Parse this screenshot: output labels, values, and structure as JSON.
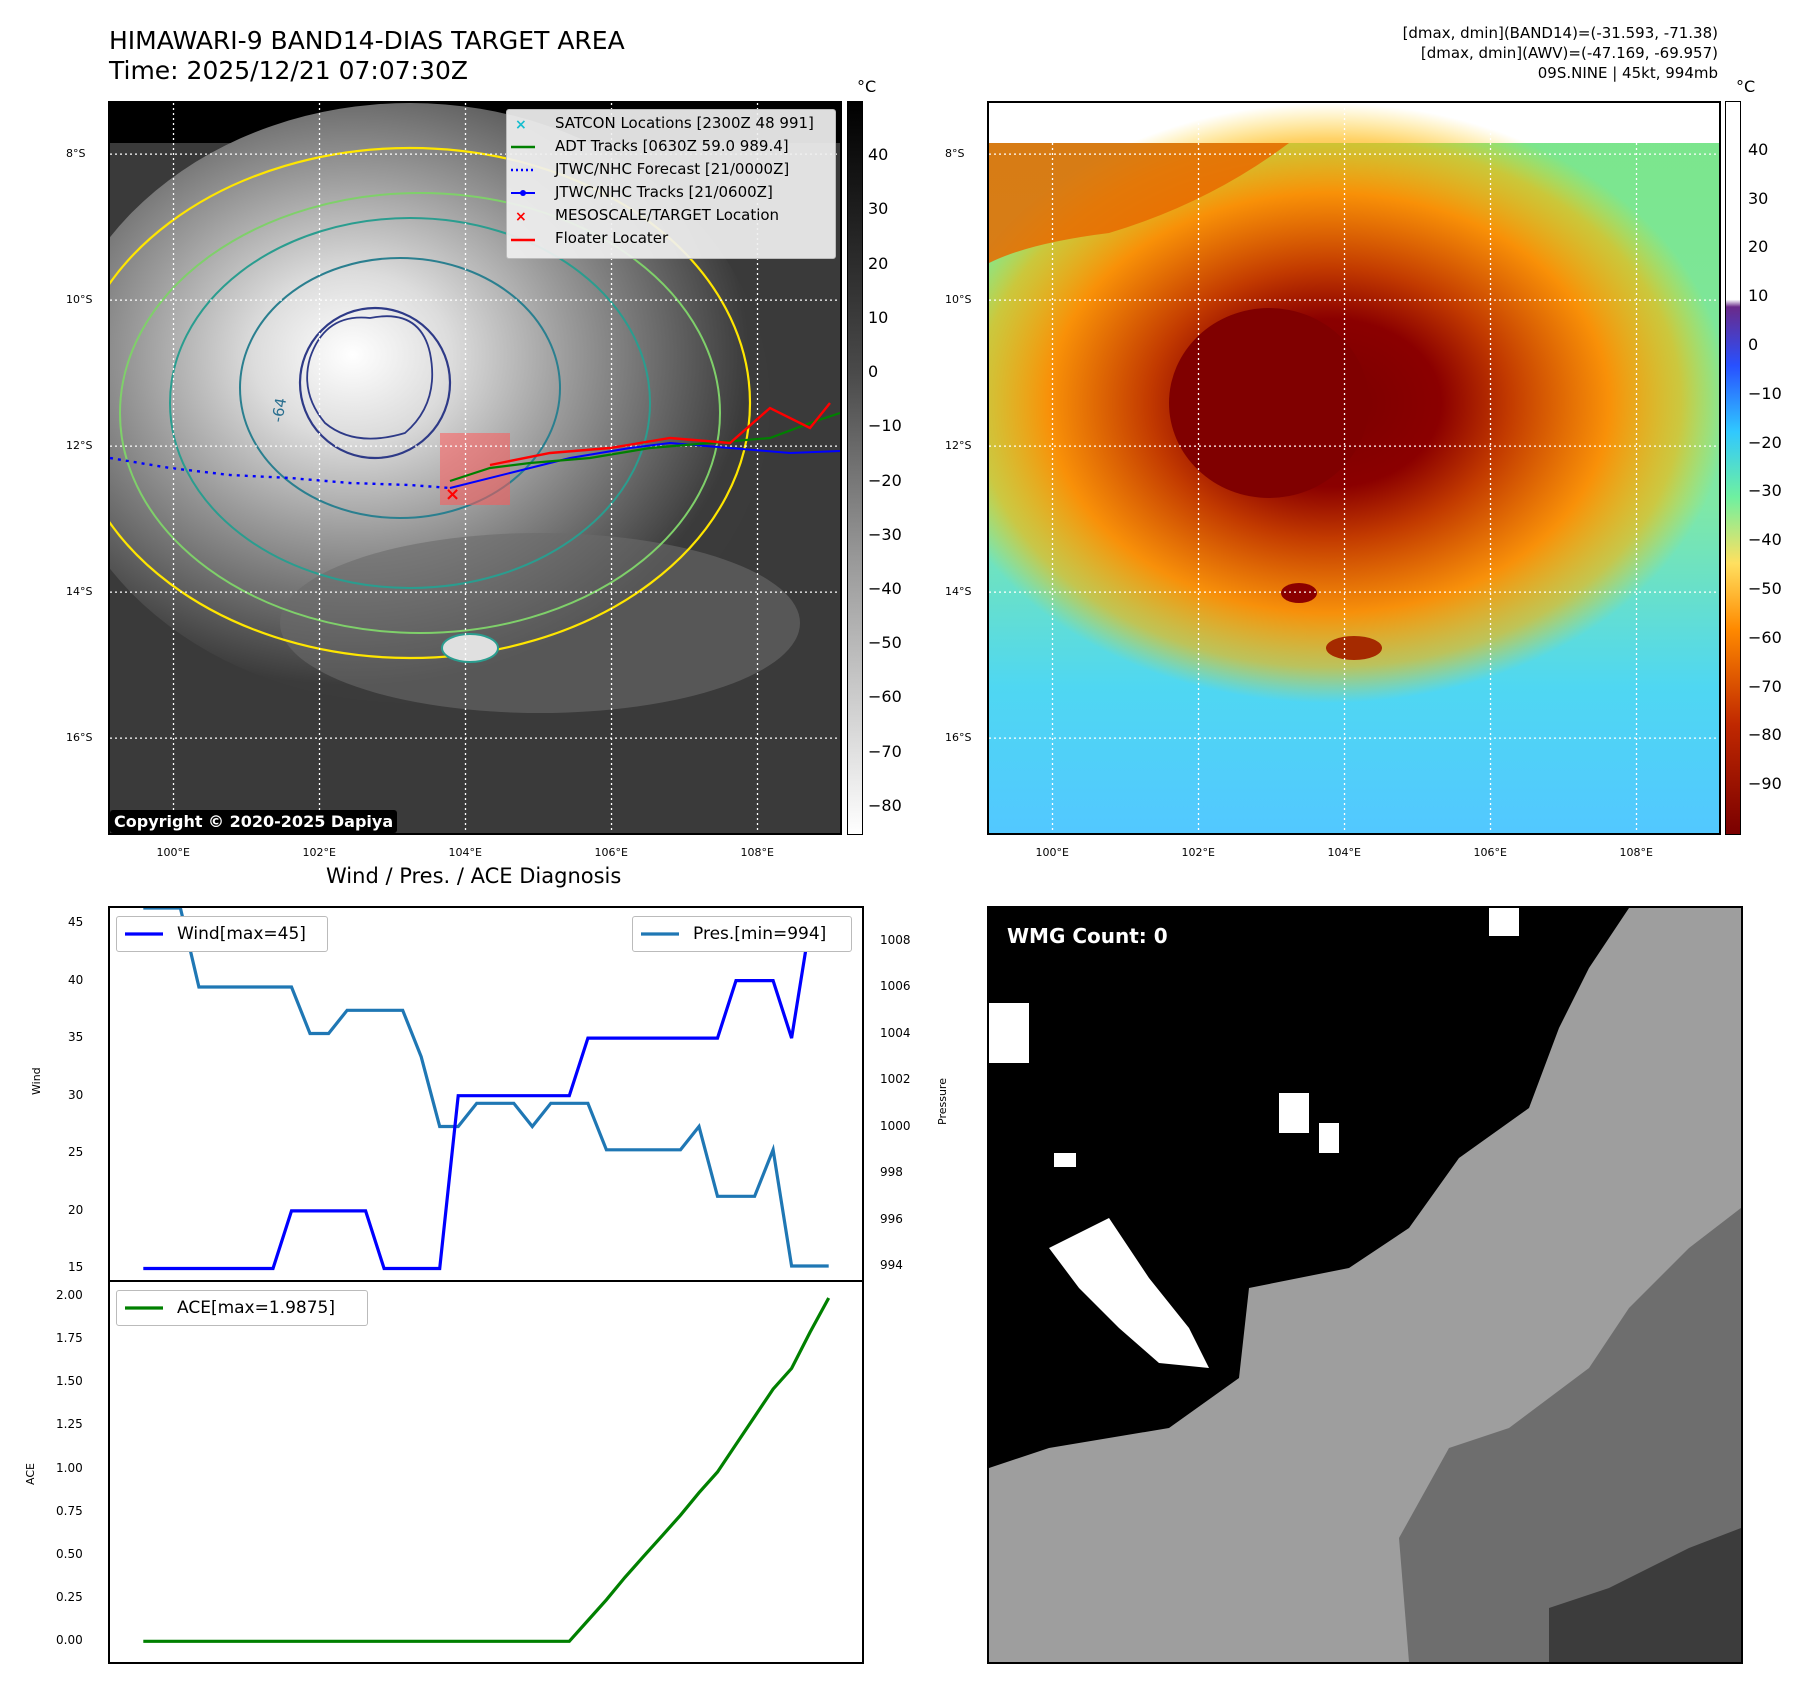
{
  "header": {
    "title_line1": "HIMAWARI-9 BAND14-DIAS TARGET AREA",
    "title_line2": "Time: 2025/12/21 07:07:30Z",
    "stats_line1": "[dmax, dmin](BAND14)=(-31.593, -71.38)",
    "stats_line2": "[dmax, dmin](AWV)=(-47.169, -69.957)",
    "stats_line3": "09S.NINE | 45kt, 994mb"
  },
  "map": {
    "lat_labels": [
      "8°S",
      "10°S",
      "12°S",
      "14°S",
      "16°S"
    ],
    "lat_values": [
      -8,
      -10,
      -12,
      -14,
      -16
    ],
    "lon_labels": [
      "100°E",
      "102°E",
      "104°E",
      "106°E",
      "108°E"
    ],
    "lon_values": [
      100,
      102,
      104,
      106,
      108
    ],
    "lat_range": [
      -7.3,
      -17.3
    ],
    "lon_range": [
      99.13,
      109.13
    ],
    "colorbar_unit": "°C",
    "colorbar_gray_ticks": [
      "40",
      "30",
      "20",
      "10",
      "0",
      "−10",
      "−20",
      "−30",
      "−40",
      "−50",
      "−60",
      "−70",
      "−80"
    ],
    "colorbar_gray_values": [
      40,
      30,
      20,
      10,
      0,
      -10,
      -20,
      -30,
      -40,
      -50,
      -60,
      -70,
      -80
    ],
    "colorbar_gray_range": [
      50,
      -85
    ],
    "colorbar_color_ticks": [
      "40",
      "30",
      "20",
      "10",
      "0",
      "−10",
      "−20",
      "−30",
      "−40",
      "−50",
      "−60",
      "−70",
      "−80",
      "−90"
    ],
    "colorbar_color_values": [
      40,
      30,
      20,
      10,
      0,
      -10,
      -20,
      -30,
      -40,
      -50,
      -60,
      -70,
      -80,
      -90
    ],
    "colorbar_color_range": [
      50,
      -100
    ],
    "copyright": "Copyright © 2020-2025 Dapiya",
    "contour_label": "-64",
    "legend": [
      {
        "label": "SATCON Locations [2300Z 48 991]",
        "color": "#17becf",
        "style": "x"
      },
      {
        "label": "ADT Tracks [0630Z 59.0 989.4]",
        "color": "#008000",
        "style": "line"
      },
      {
        "label": "JTWC/NHC Forecast [21/0000Z]",
        "color": "#0000ff",
        "style": "dotted"
      },
      {
        "label": "JTWC/NHC Tracks [21/0600Z]",
        "color": "#0000ff",
        "style": "line-dot"
      },
      {
        "label": "MESOSCALE/TARGET Location",
        "color": "#ff0000",
        "style": "x"
      },
      {
        "label": "Floater Locater",
        "color": "#ff0000",
        "style": "line"
      }
    ],
    "colors": {
      "ir_gray": "#3a3a3a",
      "contour_yellow": "#ffe600",
      "contour_teal": "#2a9d8f",
      "contour_navy": "#2e3a87"
    }
  },
  "diag": {
    "title": "Wind / Pres. / ACE Diagnosis",
    "wind_ylabel": "Wind",
    "pres_ylabel": "Pressure",
    "ace_ylabel": "ACE",
    "wind_legend": "Wind[max=45]",
    "pres_legend": "Pres.[min=994]",
    "ace_legend": "ACE[max=1.9875]",
    "wind_ticks": [
      "45",
      "40",
      "35",
      "30",
      "25",
      "20",
      "15"
    ],
    "wind_tick_values": [
      45,
      40,
      35,
      30,
      25,
      20,
      15
    ],
    "pres_ticks": [
      "1008",
      "1006",
      "1004",
      "1002",
      "1000",
      "998",
      "996",
      "994"
    ],
    "pres_tick_values": [
      1008,
      1006,
      1004,
      1002,
      1000,
      998,
      996,
      994
    ],
    "ace_ticks": [
      "2.00",
      "1.75",
      "1.50",
      "1.25",
      "1.00",
      "0.75",
      "0.50",
      "0.25",
      "0.00"
    ],
    "ace_tick_values": [
      2.0,
      1.75,
      1.5,
      1.25,
      1.0,
      0.75,
      0.5,
      0.25,
      0.0
    ]
  },
  "wmg": {
    "label": "WMG Count: 0"
  },
  "chart_data": [
    {
      "type": "line",
      "title": "Wind / Pres. / ACE Diagnosis",
      "xlabel": "",
      "ylabel": "Wind",
      "ylim": [
        14,
        46.3
      ],
      "x": [
        0,
        1,
        2,
        3,
        4,
        5,
        6,
        7,
        8,
        9,
        10,
        11,
        12,
        13,
        14,
        15,
        16,
        17,
        18,
        19,
        20,
        21,
        22,
        23,
        24,
        25,
        26,
        27,
        28,
        29,
        30,
        31,
        32,
        33,
        34,
        35,
        36,
        37
      ],
      "series": [
        {
          "name": "Wind[max=45]",
          "color": "#0000ff",
          "values": [
            15,
            15,
            15,
            15,
            15,
            15,
            15,
            15,
            20,
            20,
            20,
            20,
            20,
            15,
            15,
            15,
            15,
            30,
            30,
            30,
            30,
            30,
            30,
            30,
            35,
            35,
            35,
            35,
            35,
            35,
            35,
            35,
            40,
            40,
            40,
            35,
            45,
            45
          ]
        }
      ]
    },
    {
      "type": "line",
      "ylabel": "Pressure",
      "ylim": [
        993.4,
        1009.4
      ],
      "x": [
        0,
        1,
        2,
        3,
        4,
        5,
        6,
        7,
        8,
        9,
        10,
        11,
        12,
        13,
        14,
        15,
        16,
        17,
        18,
        19,
        20,
        21,
        22,
        23,
        24,
        25,
        26,
        27,
        28,
        29,
        30,
        31,
        32,
        33,
        34,
        35,
        36,
        37
      ],
      "series": [
        {
          "name": "Pres.[min=994]",
          "color": "#1f77b4",
          "values": [
            1009.4,
            1009.4,
            1009.4,
            1006,
            1006,
            1006,
            1006,
            1006,
            1006,
            1004,
            1004,
            1005,
            1005,
            1005,
            1005,
            1003,
            1000,
            1000,
            1001,
            1001,
            1001,
            1000,
            1001,
            1001,
            1001,
            999,
            999,
            999,
            999,
            999,
            1000,
            997,
            997,
            997,
            999,
            994,
            994,
            994
          ]
        }
      ]
    },
    {
      "type": "line",
      "ylabel": "ACE",
      "ylim": [
        -0.12,
        2.08
      ],
      "x": [
        0,
        1,
        2,
        3,
        4,
        5,
        6,
        7,
        8,
        9,
        10,
        11,
        12,
        13,
        14,
        15,
        16,
        17,
        18,
        19,
        20,
        21,
        22,
        23,
        24,
        25,
        26,
        27,
        28,
        29,
        30,
        31,
        32,
        33,
        34,
        35,
        36,
        37
      ],
      "series": [
        {
          "name": "ACE[max=1.9875]",
          "color": "#008000",
          "values": [
            0,
            0,
            0,
            0,
            0,
            0,
            0,
            0,
            0,
            0,
            0,
            0,
            0,
            0,
            0,
            0,
            0,
            0,
            0,
            0,
            0,
            0,
            0,
            0.0,
            0.12,
            0.24,
            0.37,
            0.49,
            0.61,
            0.73,
            0.86,
            0.98,
            1.14,
            1.3,
            1.46,
            1.58,
            1.79,
            1.9875
          ]
        }
      ]
    }
  ]
}
